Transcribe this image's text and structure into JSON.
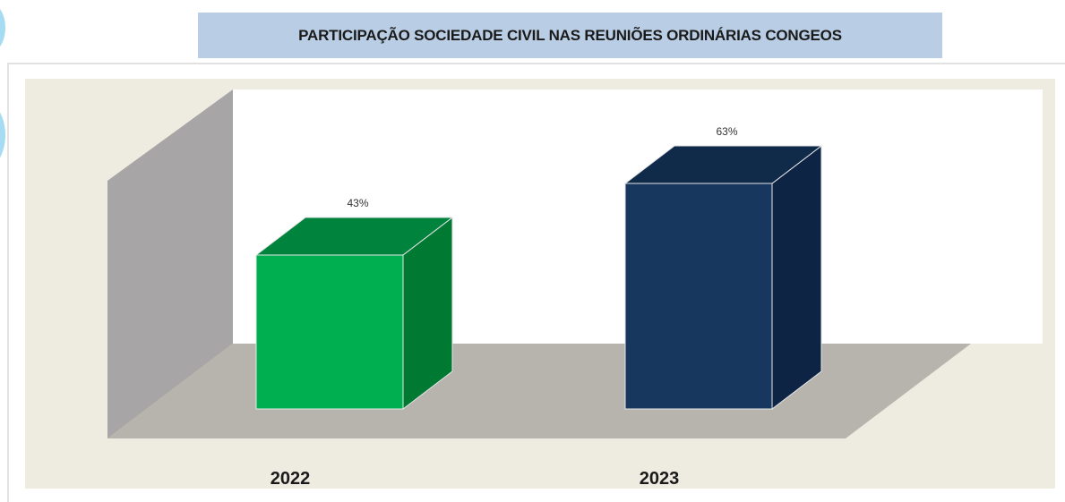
{
  "chart_data": {
    "type": "bar",
    "title": "PARTICIPAÇÃO SOCIEDADE CIVIL NAS REUNIÕES ORDINÁRIAS CONGEOS",
    "categories": [
      "2022",
      "2023"
    ],
    "values": [
      43,
      63
    ],
    "value_labels": [
      "43%",
      "63%"
    ],
    "ylim": [
      0,
      70
    ],
    "grid": false,
    "legend": "none",
    "colors": {
      "series": [
        "#00b050",
        "#17375e"
      ],
      "background": "#eeebe1",
      "floor": "#b7b4ae",
      "side_wall": "#a7a5a5"
    }
  }
}
